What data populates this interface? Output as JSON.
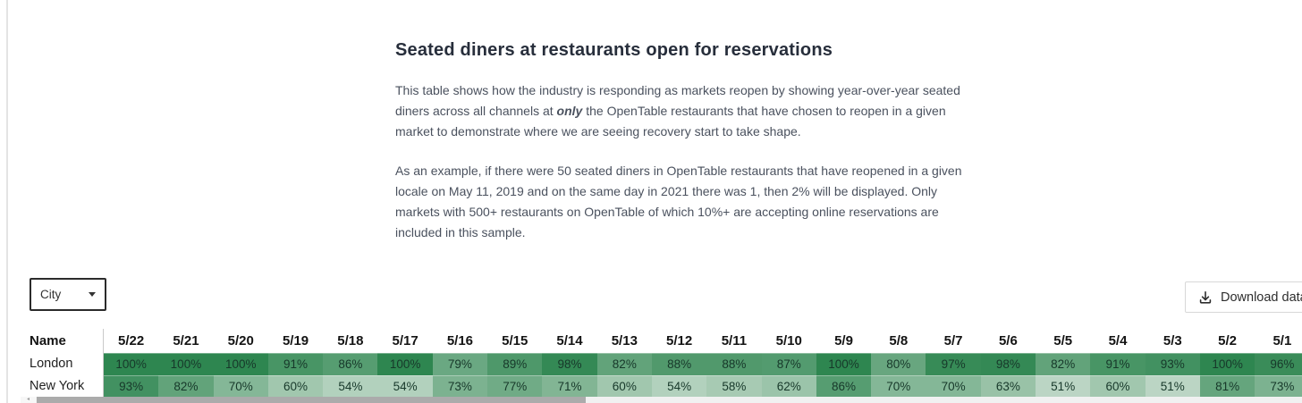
{
  "header": {
    "title": "Seated diners at restaurants open for reservations",
    "paragraph1_before": "This table shows how the industry is responding as markets reopen by showing year-over-year seated diners across all channels at ",
    "paragraph1_emphasis": "only",
    "paragraph1_after": " the OpenTable restaurants that have chosen to reopen in a given market to demonstrate where we are seeing recovery start to take shape.",
    "paragraph2": "As an example, if there were 50 seated diners in OpenTable restaurants that have reopened in a given locale on May 11, 2019 and on the same day in 2021 there was 1, then 2% will be displayed. Only markets with 500+ restaurants on OpenTable of which 10%+ are accepting online reservations are included in this sample."
  },
  "controls": {
    "filter_value": "City",
    "filter_icon": "chevron-down-icon",
    "download_label": "Download data",
    "download_icon": "download-icon"
  },
  "chart_data": {
    "type": "heatmap",
    "name_header": "Name",
    "columns": [
      "5/22",
      "5/21",
      "5/20",
      "5/19",
      "5/18",
      "5/17",
      "5/16",
      "5/15",
      "5/14",
      "5/13",
      "5/12",
      "5/11",
      "5/10",
      "5/9",
      "5/8",
      "5/7",
      "5/6",
      "5/5",
      "5/4",
      "5/3",
      "5/2",
      "5/1"
    ],
    "rows": [
      {
        "name": "London",
        "values": [
          100,
          100,
          100,
          91,
          86,
          100,
          79,
          89,
          98,
          82,
          88,
          88,
          87,
          100,
          80,
          97,
          98,
          82,
          91,
          93,
          100,
          96
        ]
      },
      {
        "name": "New York",
        "values": [
          93,
          82,
          70,
          60,
          54,
          54,
          73,
          77,
          71,
          60,
          54,
          58,
          62,
          86,
          70,
          70,
          63,
          51,
          60,
          51,
          81,
          73
        ]
      }
    ],
    "value_suffix": "%",
    "color_scale": {
      "min_value": 50,
      "max_value": 100,
      "min_color": "#bed7c6",
      "max_color": "#2e8650"
    },
    "cell_text_color": "#17382a"
  }
}
